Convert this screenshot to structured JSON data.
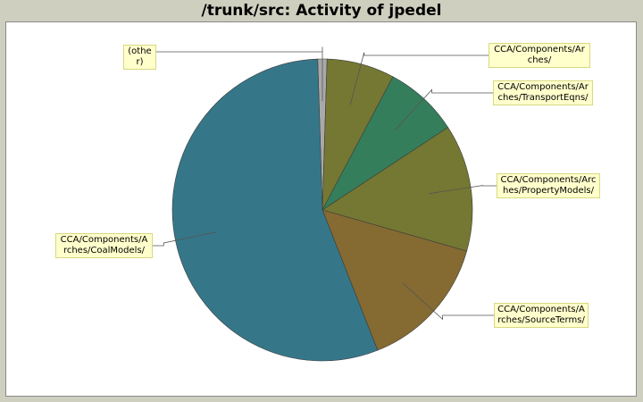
{
  "chart_data": {
    "type": "pie",
    "title": "/trunk/src: Activity of jpedel",
    "slices": [
      {
        "label": "(other)",
        "value": 1.0,
        "color": "#a9a9a9"
      },
      {
        "label": "CCA/Components/Arches/",
        "value": 7.3,
        "color": "#747832"
      },
      {
        "label": "CCA/Components/Arches/TransportEqns/",
        "value": 8.0,
        "color": "#347e5c"
      },
      {
        "label": "CCA/Components/Arches/PropertyModels/",
        "value": 13.6,
        "color": "#747832"
      },
      {
        "label": "CCA/Components/Arches/SourceTerms/",
        "value": 14.6,
        "color": "#856a32"
      },
      {
        "label": "CCA/Components/Arches/CoalModels/",
        "value": 55.5,
        "color": "#357789"
      }
    ]
  }
}
